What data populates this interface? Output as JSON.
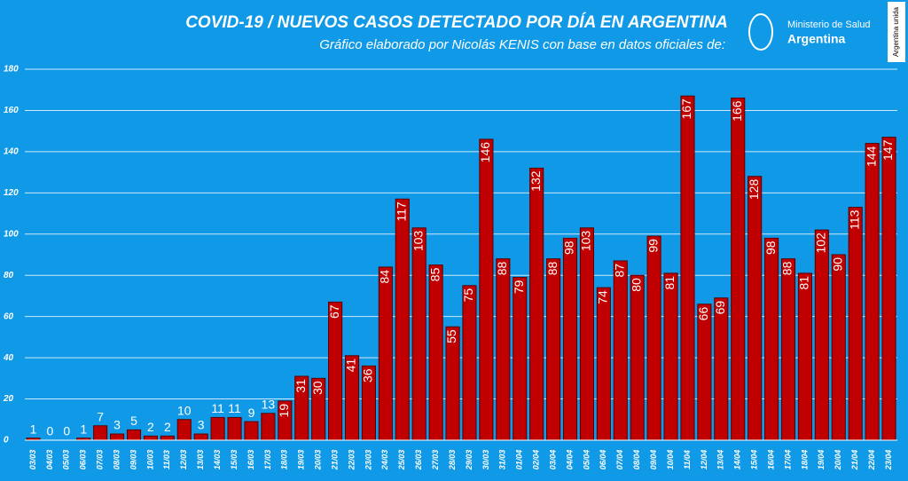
{
  "chart_data": {
    "type": "bar",
    "title": "COVID-19  /  NUEVOS CASOS DETECTADO POR DÍA EN ARGENTINA",
    "subtitle": "Gráfico elaborado por Nicolás KENIS con base en datos oficiales de:",
    "categories": [
      "03/03",
      "04/03",
      "05/03",
      "06/03",
      "07/03",
      "08/03",
      "09/03",
      "10/03",
      "11/03",
      "12/03",
      "13/03",
      "14/03",
      "15/03",
      "16/03",
      "17/03",
      "18/03",
      "19/03",
      "20/03",
      "21/03",
      "22/03",
      "23/03",
      "24/03",
      "25/03",
      "26/03",
      "27/03",
      "28/03",
      "29/03",
      "30/03",
      "31/03",
      "01/04",
      "02/04",
      "03/04",
      "04/04",
      "05/04",
      "06/04",
      "07/04",
      "08/04",
      "09/04",
      "10/04",
      "11/04",
      "12/04",
      "13/04",
      "14/04",
      "15/04",
      "16/04",
      "17/04",
      "18/04",
      "19/04",
      "20/04",
      "21/04",
      "22/04",
      "23/04"
    ],
    "values": [
      1,
      0,
      0,
      1,
      7,
      3,
      5,
      2,
      2,
      10,
      3,
      11,
      11,
      9,
      13,
      19,
      31,
      30,
      67,
      41,
      36,
      84,
      117,
      103,
      85,
      55,
      75,
      146,
      88,
      79,
      132,
      88,
      98,
      103,
      74,
      87,
      80,
      99,
      81,
      167,
      66,
      69,
      166,
      128,
      98,
      88,
      81,
      102,
      90,
      113,
      144,
      147
    ],
    "color": "#c00000",
    "ylim": [
      0,
      180
    ],
    "yticks": [
      0,
      20,
      40,
      60,
      80,
      100,
      120,
      140,
      160,
      180
    ],
    "grid": true
  },
  "logo": {
    "ministry": "Ministerio de Salud",
    "country": "Argentina",
    "badge": "Argentina unida"
  }
}
